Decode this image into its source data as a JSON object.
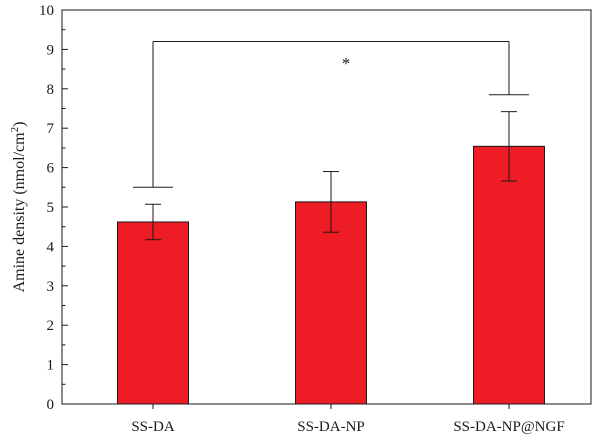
{
  "chart_data": {
    "type": "bar",
    "categories": [
      "SS-DA",
      "SS-DA-NP",
      "SS-DA-NP@NGF"
    ],
    "values": [
      4.62,
      5.13,
      6.54
    ],
    "errors": [
      0.45,
      0.77,
      0.88
    ],
    "ylabel_main": "Amine density (nmol/cm",
    "ylabel_sup": "2",
    "ylabel_end": ")",
    "xlabel": "",
    "ylim": [
      0,
      10
    ],
    "yticks": [
      "0",
      "1",
      "2",
      "3",
      "4",
      "5",
      "6",
      "7",
      "8",
      "9",
      "10"
    ],
    "bar_color": "#ee1c25",
    "grid": false,
    "significance": {
      "from": "SS-DA",
      "to": "SS-DA-NP@NGF",
      "line_y": 9.2,
      "left_drop_to": 5.5,
      "right_drop_to": 7.85,
      "marker": "*"
    }
  }
}
